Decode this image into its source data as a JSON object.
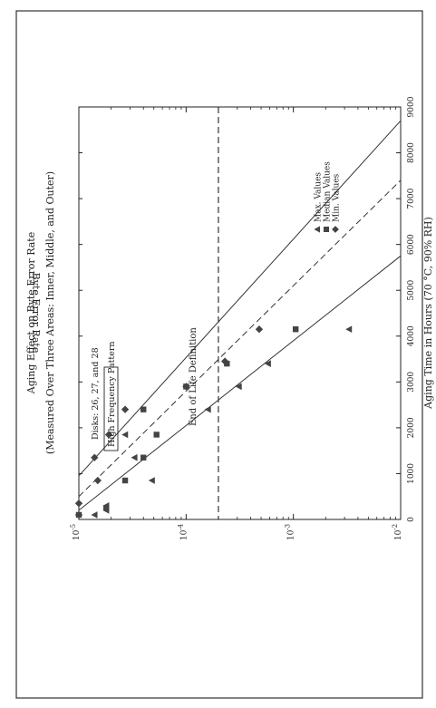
{
  "chart_data": {
    "type": "scatter",
    "title": "Aging Effect on Byte Error Rate",
    "subtitle": "(Measured Over Three Areas: Inner, Middle, and Outer)",
    "xlabel": "Aging Time in Hours (70 °C, 90% RH)",
    "ylabel": "Byte Error Rate",
    "x_scale": "linear",
    "y_scale": "log",
    "xlim": [
      0,
      9000
    ],
    "ylim": [
      1e-05,
      0.01
    ],
    "x_ticks": [
      "0",
      "1000",
      "2000",
      "3000",
      "4000",
      "5000",
      "6000",
      "7000",
      "8000",
      "9000"
    ],
    "y_ticks": [
      {
        "base": "10",
        "exp": "-5"
      },
      {
        "base": "10",
        "exp": "-4"
      },
      {
        "base": "10",
        "exp": "-3"
      },
      {
        "base": "10",
        "exp": "-2"
      }
    ],
    "grid": false,
    "legend_position": "top-right",
    "annotations": {
      "disks": "Disks: 26, 27, and 28",
      "pattern": "High Frequency Pattern",
      "end_of_life": "End of Life Definition"
    },
    "end_of_life_level": 0.0002,
    "series": [
      {
        "name": "Max. Values",
        "marker": "triangle-down",
        "points": [
          {
            "x": 100,
            "y": 1.4e-05
          },
          {
            "x": 200,
            "y": 1.8e-05
          },
          {
            "x": 300,
            "y": 1.8e-05
          },
          {
            "x": 850,
            "y": 4.8e-05
          },
          {
            "x": 1350,
            "y": 3.3e-05
          },
          {
            "x": 1850,
            "y": 2.7e-05
          },
          {
            "x": 2400,
            "y": 0.00016
          },
          {
            "x": 2900,
            "y": 0.00031
          },
          {
            "x": 3400,
            "y": 0.00058
          },
          {
            "x": 4150,
            "y": 0.0033
          }
        ]
      },
      {
        "name": "Median Values",
        "marker": "square",
        "points": [
          {
            "x": 100,
            "y": 1e-05
          },
          {
            "x": 250,
            "y": 1.8e-05
          },
          {
            "x": 850,
            "y": 2.7e-05
          },
          {
            "x": 1350,
            "y": 4e-05
          },
          {
            "x": 1850,
            "y": 5.3e-05
          },
          {
            "x": 2400,
            "y": 4e-05
          },
          {
            "x": 2900,
            "y": 0.0001
          },
          {
            "x": 3400,
            "y": 0.00024
          },
          {
            "x": 4150,
            "y": 0.00105
          }
        ]
      },
      {
        "name": "Min. Values",
        "marker": "diamond",
        "points": [
          {
            "x": 100,
            "y": 1e-05
          },
          {
            "x": 350,
            "y": 1e-05
          },
          {
            "x": 850,
            "y": 1.5e-05
          },
          {
            "x": 1350,
            "y": 1.4e-05
          },
          {
            "x": 1850,
            "y": 1.9e-05
          },
          {
            "x": 2400,
            "y": 2.7e-05
          },
          {
            "x": 2900,
            "y": 0.0001
          },
          {
            "x": 3450,
            "y": 0.00023
          },
          {
            "x": 4150,
            "y": 0.00048
          }
        ]
      }
    ],
    "fit_lines": [
      {
        "style": "solid",
        "points": [
          {
            "x": 200,
            "y": 1e-05
          },
          {
            "x": 5750,
            "y": 0.01
          }
        ]
      },
      {
        "style": "dashed",
        "points": [
          {
            "x": 500,
            "y": 1e-05
          },
          {
            "x": 7400,
            "y": 0.01
          }
        ]
      },
      {
        "style": "solid",
        "points": [
          {
            "x": 950,
            "y": 1e-05
          },
          {
            "x": 8700,
            "y": 0.01
          }
        ]
      }
    ]
  }
}
